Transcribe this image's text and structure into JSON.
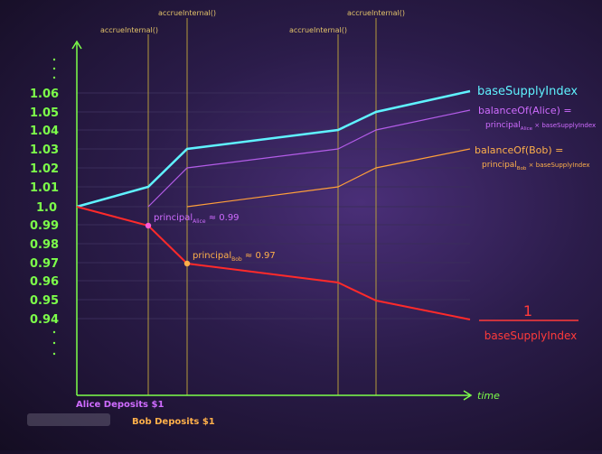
{
  "axis": {
    "y_ticks": [
      "1.06",
      "1.05",
      "1.04",
      "1.03",
      "1.02",
      "1.01",
      "1.0",
      "0.99",
      "0.98",
      "0.97",
      "0.96",
      "0.95",
      "0.94"
    ],
    "x_label": "time"
  },
  "events": {
    "top": [
      "accrueInternal()",
      "accrueInternal()"
    ],
    "mid": [
      "accrueInternal()",
      "accrueInternal()"
    ]
  },
  "deposits": {
    "alice": "Alice Deposits $1",
    "bob": "Bob Deposits $1"
  },
  "labels": {
    "base_supply_index": "baseSupplyIndex",
    "balance_alice_1": "balanceOf(Alice) =",
    "balance_alice_2a": "principal",
    "balance_alice_sub": "Alice",
    "balance_alice_2b": " × baseSupplyIndex",
    "balance_bob_1": "balanceOf(Bob) =",
    "balance_bob_2a": "principal",
    "balance_bob_sub": "Bob",
    "balance_bob_2b": " × baseSupplyIndex",
    "principal_alice_a": "principal",
    "principal_alice_sub": "Alice",
    "principal_alice_b": " ≈ 0.99",
    "principal_bob_a": "principal",
    "principal_bob_sub": "Bob",
    "principal_bob_b": " ≈ 0.97",
    "fraction_numerator": "1",
    "fraction_denominator": "baseSupplyIndex"
  },
  "colors": {
    "axis": "#7dff4a",
    "base_supply_index": "#5ff2ff",
    "alice": "#cf6cff",
    "bob": "#ffb04a",
    "inverse": "#ff3a3a",
    "event_line": "#b59a3c"
  }
}
